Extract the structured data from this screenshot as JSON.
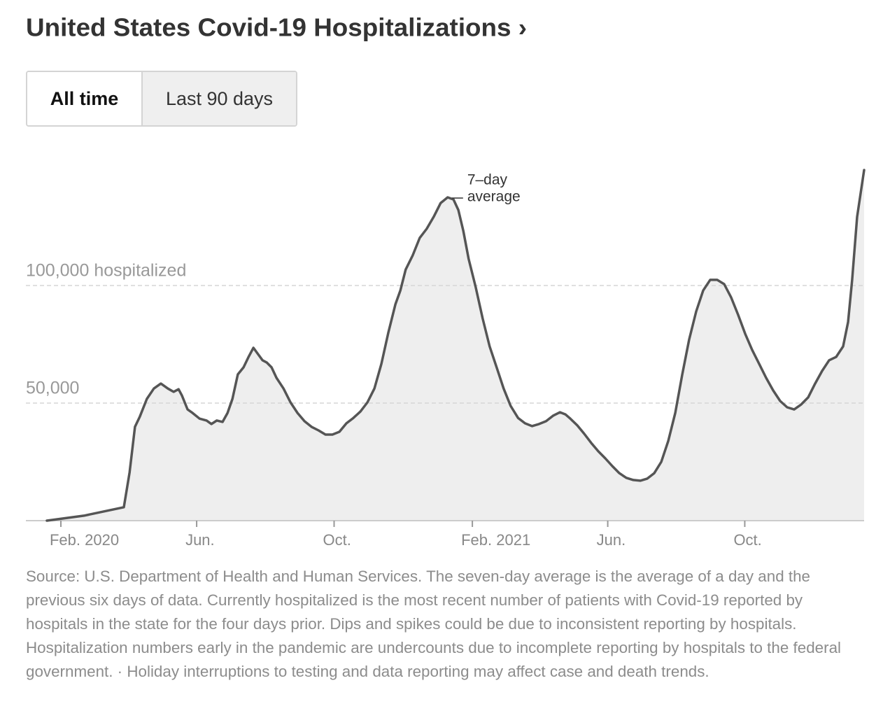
{
  "chart_data": {
    "type": "area",
    "title": "United States Covid-19 Hospitalizations ›",
    "buttons": [
      "All time",
      "Last 90 days"
    ],
    "selected_button": 0,
    "annotation": [
      "7–day",
      "average"
    ],
    "note": "Source: U.S. Department of Health and Human Services. The seven-day average is the average of a day and the previous six days of data. Currently hospitalized is the most recent number of patients with Covid-19 reported by hospitals in the state for the four days prior. Dips and spikes could be due to inconsistent reporting by hospitals. Hospitalization numbers early in the pandemic are undercounts due to incomplete reporting by hospitals to the federal government.  ·  Holiday interruptions to testing and data reporting may affect case and death trends.",
    "color": "#555555",
    "fill": "#eeeeee",
    "grid": true,
    "xlim": [
      2020.0,
      2022.037
    ],
    "ylim": [
      0,
      150000
    ],
    "xticks": [
      {
        "value": 2020.085,
        "label": "Feb. 2020"
      },
      {
        "value": 2020.415,
        "label": "Jun."
      },
      {
        "value": 2020.749,
        "label": "Oct."
      },
      {
        "value": 2021.085,
        "label": "Feb. 2021"
      },
      {
        "value": 2021.414,
        "label": "Jun."
      },
      {
        "value": 2021.747,
        "label": "Oct."
      }
    ],
    "yticks": [
      {
        "value": 50000,
        "label": "50,000"
      },
      {
        "value": 100000,
        "label": "100,000 hospitalized"
      }
    ],
    "x": [
      2020.051,
      2020.141,
      2020.238,
      2020.252,
      2020.265,
      2020.277,
      2020.294,
      2020.311,
      2020.328,
      2020.345,
      2020.359,
      2020.371,
      2020.379,
      2020.393,
      2020.405,
      2020.422,
      2020.439,
      2020.451,
      2020.464,
      2020.478,
      2020.49,
      2020.502,
      2020.515,
      2020.529,
      2020.541,
      2020.553,
      2020.563,
      2020.575,
      2020.585,
      2020.597,
      2020.609,
      2020.626,
      2020.643,
      2020.66,
      2020.677,
      2020.694,
      2020.711,
      2020.728,
      2020.745,
      2020.762,
      2020.779,
      2020.796,
      2020.813,
      2020.83,
      2020.847,
      2020.864,
      2020.881,
      2020.898,
      2020.91,
      2020.923,
      2020.94,
      2020.957,
      2020.974,
      2020.991,
      2021.008,
      2021.025,
      2021.039,
      2021.051,
      2021.063,
      2021.076,
      2021.093,
      2021.11,
      2021.127,
      2021.144,
      2021.161,
      2021.178,
      2021.196,
      2021.213,
      2021.23,
      2021.247,
      2021.264,
      2021.281,
      2021.298,
      2021.311,
      2021.323,
      2021.34,
      2021.357,
      2021.374,
      2021.391,
      2021.408,
      2021.425,
      2021.442,
      2021.459,
      2021.476,
      2021.493,
      2021.51,
      2021.527,
      2021.544,
      2021.561,
      2021.578,
      2021.595,
      2021.612,
      2021.629,
      2021.646,
      2021.663,
      2021.68,
      2021.697,
      2021.714,
      2021.731,
      2021.748,
      2021.765,
      2021.782,
      2021.799,
      2021.816,
      2021.833,
      2021.85,
      2021.867,
      2021.884,
      2021.901,
      2021.918,
      2021.935,
      2021.952,
      2021.969,
      2021.986,
      2021.998,
      2022.008,
      2022.02,
      2022.037
    ],
    "values": [
      0,
      2100,
      5700,
      20500,
      39900,
      44300,
      51800,
      56200,
      58300,
      56200,
      54800,
      55900,
      53300,
      47300,
      45800,
      43400,
      42600,
      41100,
      42600,
      42000,
      45800,
      51800,
      62200,
      65200,
      69600,
      73500,
      71100,
      68200,
      67300,
      65200,
      60700,
      56200,
      50300,
      45800,
      42300,
      39900,
      38400,
      36600,
      36600,
      37800,
      41400,
      43700,
      46400,
      50300,
      56200,
      66700,
      80100,
      92000,
      97900,
      106800,
      112800,
      120200,
      124100,
      129200,
      135100,
      137500,
      136600,
      132100,
      123200,
      111300,
      99400,
      86000,
      74100,
      65200,
      56200,
      48800,
      43700,
      41400,
      40200,
      41100,
      42300,
      44600,
      46100,
      45200,
      43400,
      40500,
      36900,
      33000,
      29500,
      26500,
      23200,
      20200,
      18200,
      17300,
      17000,
      17900,
      20200,
      25000,
      33900,
      45800,
      62200,
      77100,
      89000,
      97900,
      102400,
      102400,
      100600,
      94900,
      87500,
      79500,
      72600,
      66700,
      60700,
      55400,
      50900,
      48200,
      47300,
      49400,
      52400,
      58300,
      63700,
      68200,
      69600,
      74100,
      84500,
      102400,
      129200,
      149100
    ]
  }
}
